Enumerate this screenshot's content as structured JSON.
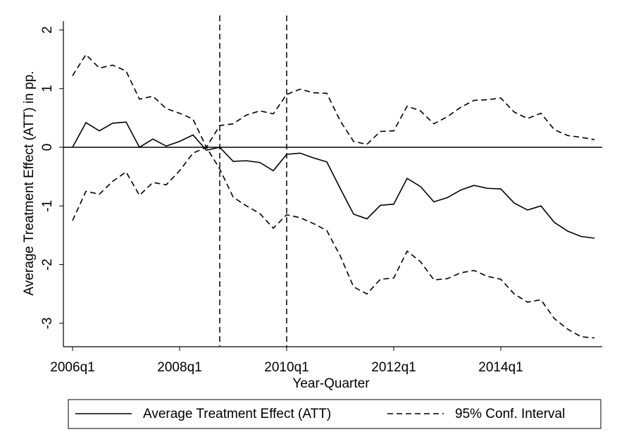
{
  "chart_data": {
    "type": "line",
    "x_label": "Year-Quarter",
    "y_label": "Average Treatment Effect (ATT) in pp.",
    "categories": [
      "2006q1",
      null,
      null,
      null,
      null,
      null,
      null,
      null,
      "2008q1",
      null,
      null,
      null,
      null,
      null,
      null,
      null,
      "2010q1",
      null,
      null,
      null,
      null,
      null,
      null,
      null,
      "2012q1",
      null,
      null,
      null,
      null,
      null,
      null,
      null,
      "2014q1",
      null,
      null,
      null,
      null,
      null,
      null,
      null
    ],
    "series": [
      {
        "name": "Average Treatment Effect (ATT)",
        "color": "#000000",
        "dash": "solid",
        "values": [
          0,
          0.42,
          0.28,
          0.41,
          0.43,
          0.0,
          0.14,
          0.02,
          0.1,
          0.21,
          -0.05,
          0.0,
          -0.24,
          -0.23,
          -0.26,
          -0.4,
          -0.12,
          -0.1,
          -0.18,
          -0.25,
          -0.7,
          -1.14,
          -1.22,
          -0.99,
          -0.97,
          -0.53,
          -0.67,
          -0.93,
          -0.86,
          -0.73,
          -0.65,
          -0.7,
          -0.71,
          -0.95,
          -1.07,
          -1.0,
          -1.28,
          -1.43,
          -1.52,
          -1.55
        ]
      },
      {
        "name": "95% Conf. Interval",
        "color": "#000000",
        "dash": "dashed",
        "upper": [
          1.22,
          1.58,
          1.35,
          1.4,
          1.3,
          0.82,
          0.87,
          0.66,
          0.58,
          0.48,
          0.0,
          0.37,
          0.4,
          0.55,
          0.62,
          0.57,
          0.9,
          0.99,
          0.93,
          0.92,
          0.45,
          0.1,
          0.05,
          0.27,
          0.28,
          0.7,
          0.62,
          0.4,
          0.52,
          0.68,
          0.8,
          0.81,
          0.84,
          0.6,
          0.49,
          0.58,
          0.3,
          0.2,
          0.17,
          0.13
        ],
        "lower": [
          -1.25,
          -0.75,
          -0.8,
          -0.58,
          -0.42,
          -0.82,
          -0.6,
          -0.64,
          -0.4,
          -0.1,
          0.0,
          -0.37,
          -0.85,
          -1.0,
          -1.13,
          -1.38,
          -1.15,
          -1.2,
          -1.3,
          -1.42,
          -1.85,
          -2.38,
          -2.5,
          -2.25,
          -2.23,
          -1.77,
          -1.95,
          -2.26,
          -2.24,
          -2.14,
          -2.1,
          -2.2,
          -2.25,
          -2.5,
          -2.64,
          -2.6,
          -2.92,
          -3.1,
          -3.23,
          -3.25
        ]
      }
    ],
    "ylim": [
      -3.4,
      2.15
    ],
    "yticks": [
      -3,
      -2,
      -1,
      0,
      1,
      2
    ],
    "hline": 0,
    "vlines": [
      11,
      16
    ],
    "legend": "bottom"
  }
}
